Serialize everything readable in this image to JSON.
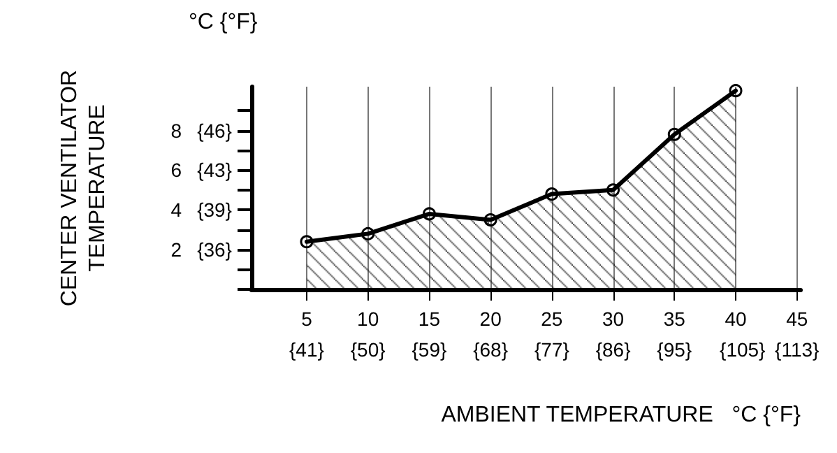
{
  "chart_data": {
    "type": "area",
    "xlabel": "AMBIENT TEMPERATURE   °C {°F}",
    "ylabel": "CENTER VENTILATOR\nTEMPERATURE",
    "annotations": [
      "°C {°F}"
    ],
    "x": [
      5,
      10,
      15,
      20,
      25,
      30,
      35,
      40
    ],
    "series": [
      {
        "color": "#000000",
        "values": [
          2.4,
          2.8,
          3.8,
          3.5,
          4.8,
          5.0,
          7.8,
          10.0
        ]
      }
    ],
    "xlim": [
      0.5,
      45.3
    ],
    "xticks": [
      5,
      10,
      15,
      20,
      25,
      30,
      35,
      40,
      45
    ],
    "x2lim": [
      32.9,
      113.54
    ],
    "x2ticks": [
      {
        "value": 41,
        "label": "{41}"
      },
      {
        "value": 50,
        "label": "{50}"
      },
      {
        "value": 59,
        "label": "{59}"
      },
      {
        "value": 68,
        "label": "{68}"
      },
      {
        "value": 77,
        "label": "{77}"
      },
      {
        "value": 86,
        "label": "{86}"
      },
      {
        "value": 95,
        "label": "{95}"
      },
      {
        "value": 105,
        "label": "{105}"
      },
      {
        "value": 113,
        "label": "{113}"
      }
    ],
    "ylim": [
      0,
      10.2
    ],
    "yticks": [
      {
        "value": 0,
        "label": null
      },
      {
        "value": 1,
        "label": null
      },
      2,
      {
        "value": 3,
        "label": null
      },
      4,
      {
        "value": 5,
        "label": null
      },
      6,
      {
        "value": 7,
        "label": null
      },
      8,
      {
        "value": 9,
        "label": null
      }
    ],
    "y2lim": [
      32,
      50.36
    ],
    "y2ticks": [
      {
        "value": 35.6,
        "label": "{36}"
      },
      {
        "value": 39.2,
        "label": "{39}"
      },
      {
        "value": 42.8,
        "label": "{43}"
      },
      {
        "value": 46.4,
        "label": "{46}"
      }
    ],
    "grid": "x",
    "marker": "circle",
    "line_style": "solid"
  }
}
